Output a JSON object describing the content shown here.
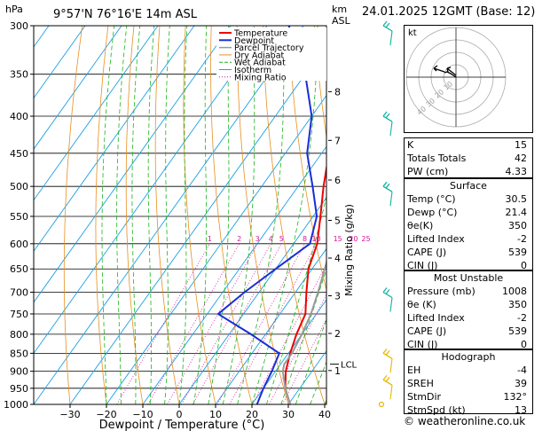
{
  "header": {
    "hpa_label": "hPa",
    "location": "9°57'N  76°16'E  14m  ASL",
    "km_label": "km",
    "asl_label": "ASL",
    "datetime": "24.01.2025  12GMT  (Base: 12)"
  },
  "chart_data": {
    "type": "line",
    "title": "9°57'N  76°16'E  14m  ASL",
    "xlabel": "Dewpoint / Temperature (°C)",
    "ylabel": "hPa",
    "mixing_ratio_label": "Mixing Ratio (g/kg)",
    "pressure_ticks": [
      300,
      350,
      400,
      450,
      500,
      550,
      600,
      650,
      700,
      750,
      800,
      850,
      900,
      950,
      1000
    ],
    "temp_ticks": [
      -30,
      -20,
      -10,
      0,
      10,
      20,
      30,
      40
    ],
    "xlim": [
      -40,
      40
    ],
    "ylim": [
      1000,
      300
    ],
    "km_ticks": [
      {
        "label": "8",
        "p": 370
      },
      {
        "label": "7",
        "p": 432
      },
      {
        "label": "6",
        "p": 490
      },
      {
        "label": "5",
        "p": 557
      },
      {
        "label": "4",
        "p": 628
      },
      {
        "label": "3",
        "p": 708
      },
      {
        "label": "2",
        "p": 798
      },
      {
        "label": "1",
        "p": 898
      }
    ],
    "lcl_label": "LCL",
    "lcl_p": 880,
    "mixing_ratio_values": [
      "1",
      "2",
      "3",
      "4",
      "5",
      "8",
      "10",
      "15",
      "20",
      "25"
    ],
    "legend": [
      "Temperature",
      "Dewpoint",
      "Parcel Trajectory",
      "Dry Adiabat",
      "Wet Adiabat",
      "Isotherm",
      "Mixing Ratio"
    ],
    "series": [
      {
        "name": "Temperature",
        "color": "#ee0000",
        "points": [
          [
            1000,
            30.5
          ],
          [
            950,
            26
          ],
          [
            900,
            22.8
          ],
          [
            850,
            20.5
          ],
          [
            800,
            18.5
          ],
          [
            750,
            17
          ],
          [
            700,
            13
          ],
          [
            650,
            9
          ],
          [
            600,
            6.5
          ],
          [
            550,
            2
          ],
          [
            500,
            -3
          ],
          [
            450,
            -8
          ],
          [
            400,
            -14
          ],
          [
            350,
            -23
          ],
          [
            300,
            -32
          ]
        ]
      },
      {
        "name": "Dewpoint",
        "color": "#1a2ed6",
        "points": [
          [
            1000,
            21.4
          ],
          [
            950,
            20
          ],
          [
            900,
            19
          ],
          [
            850,
            17.5
          ],
          [
            800,
            6
          ],
          [
            750,
            -7
          ],
          [
            700,
            -4
          ],
          [
            650,
            0
          ],
          [
            600,
            4.5
          ],
          [
            550,
            1
          ],
          [
            500,
            -6
          ],
          [
            450,
            -14
          ],
          [
            400,
            -20
          ],
          [
            350,
            -30
          ],
          [
            300,
            -44
          ]
        ]
      },
      {
        "name": "Parcel Trajectory",
        "color": "#999999",
        "points": [
          [
            1000,
            30.5
          ],
          [
            950,
            26
          ],
          [
            900,
            22
          ],
          [
            880,
            21
          ],
          [
            850,
            21
          ],
          [
            800,
            20
          ],
          [
            750,
            18.5
          ],
          [
            700,
            16.2
          ],
          [
            650,
            13.5
          ],
          [
            600,
            10.5
          ],
          [
            550,
            6.5
          ],
          [
            500,
            2.5
          ],
          [
            450,
            -3
          ],
          [
            400,
            -9
          ],
          [
            350,
            -18
          ],
          [
            300,
            -28
          ]
        ]
      }
    ],
    "colors": {
      "dry_adiabat": "#e69020",
      "wet_adiabat": "#19b419",
      "isotherm": "#1aa0e6",
      "mixing_ratio": "#d6169b"
    }
  },
  "wind_barbs": [
    {
      "p": 300,
      "color": "#12b3a0"
    },
    {
      "p": 400,
      "color": "#12b3a0"
    },
    {
      "p": 500,
      "color": "#12b3a0"
    },
    {
      "p": 700,
      "color": "#12b3a0"
    },
    {
      "p": 850,
      "color": "#e6b800"
    },
    {
      "p": 925,
      "color": "#e6b800"
    },
    {
      "p": 1000,
      "color": "#e6b800"
    }
  ],
  "hodograph": {
    "label": "kt",
    "ring_labels": [
      "10",
      "20",
      "30",
      "40"
    ]
  },
  "indices": [
    {
      "label": "K",
      "value": "15"
    },
    {
      "label": "Totals Totals",
      "value": "42"
    },
    {
      "label": "PW (cm)",
      "value": "4.33"
    }
  ],
  "surface": {
    "title": "Surface",
    "rows": [
      {
        "label": "Temp (°C)",
        "value": "30.5"
      },
      {
        "label": "Dewp (°C)",
        "value": "21.4"
      },
      {
        "label": "θe(K)",
        "value": "350"
      },
      {
        "label": "Lifted Index",
        "value": "-2"
      },
      {
        "label": "CAPE (J)",
        "value": "539"
      },
      {
        "label": "CIN (J)",
        "value": "0"
      }
    ]
  },
  "most_unstable": {
    "title": "Most Unstable",
    "rows": [
      {
        "label": "Pressure (mb)",
        "value": "1008"
      },
      {
        "label": "θe (K)",
        "value": "350"
      },
      {
        "label": "Lifted Index",
        "value": "-2"
      },
      {
        "label": "CAPE (J)",
        "value": "539"
      },
      {
        "label": "CIN (J)",
        "value": "0"
      }
    ]
  },
  "hodograph_stats": {
    "title": "Hodograph",
    "rows": [
      {
        "label": "EH",
        "value": "-4"
      },
      {
        "label": "SREH",
        "value": "39"
      },
      {
        "label": "StmDir",
        "value": "132°"
      },
      {
        "label": "StmSpd (kt)",
        "value": "13"
      }
    ]
  },
  "footer": "© weatheronline.co.uk"
}
